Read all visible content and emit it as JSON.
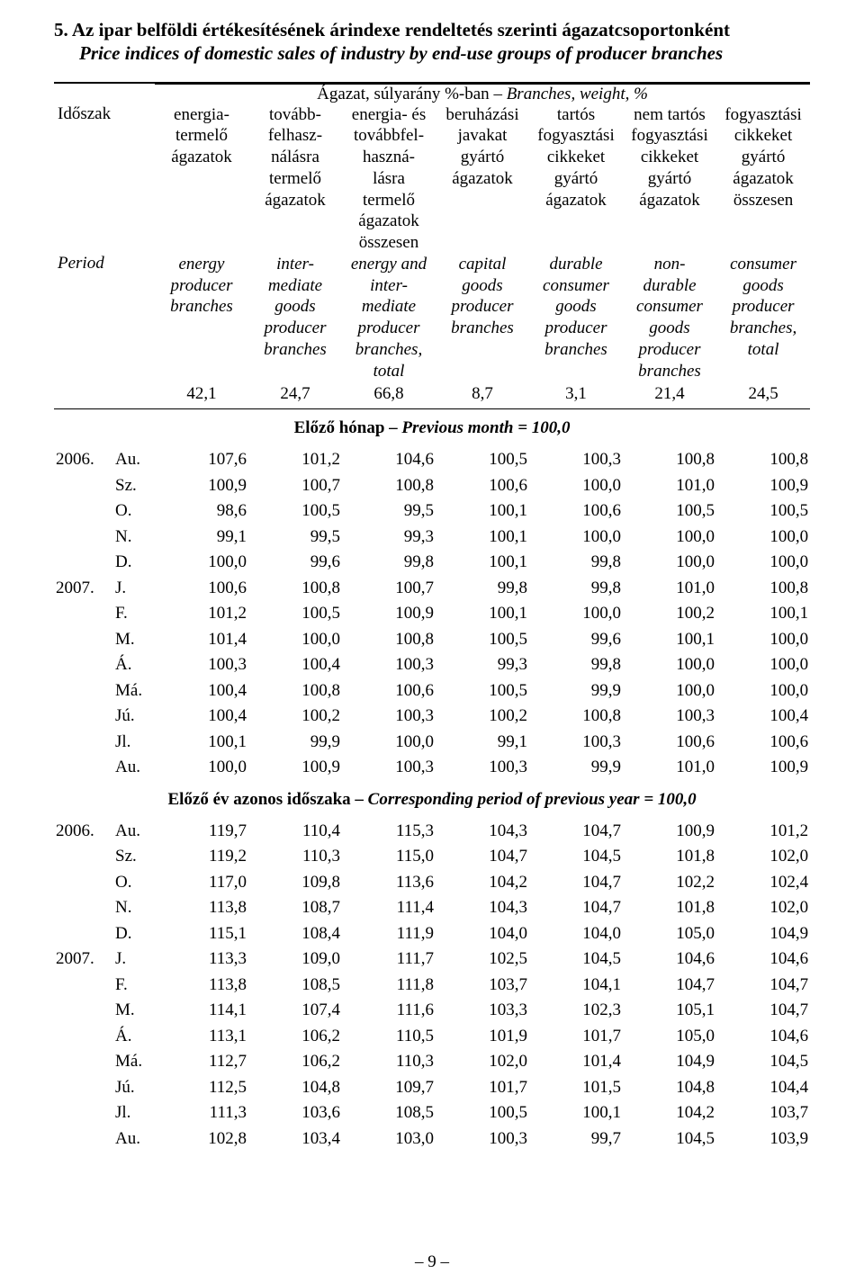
{
  "title_main": "5. Az ipar belföldi értékesítésének árindexe rendeltetés szerinti ágazatcsoportonként",
  "title_sub": "Price indices of domestic sales of industry by end-use groups of producer branches",
  "super_header_plain": "Ágazat, súlyarány %-ban ",
  "super_header_italic": "– Branches, weight, %",
  "row_labels": {
    "hu": "Időszak",
    "en": "Period"
  },
  "columns_hu": [
    "energia-\ntermelő\nágazatok",
    "tovább-\nfelhasz-\nnálásra\ntermelő\nágazatok",
    "energia- és\ntovábbfel-\nhaszná-\nlásra\ntermelő\nágazatok\nösszesen",
    "beruházási\njavakat\ngyártó\nágazatok",
    "tartós\nfogyasztási\ncikkeket\ngyártó\nágazatok",
    "nem tartós\nfogyasztási\ncikkeket\ngyártó\nágazatok",
    "fogyasztási\ncikkeket\ngyártó\nágazatok\nösszesen"
  ],
  "columns_en": [
    "energy\nproducer\nbranches",
    "inter-\nmediate\ngoods\nproducer\nbranches",
    "energy and\ninter-\nmediate\nproducer\nbranches,\ntotal",
    "capital\ngoods\nproducer\nbranches",
    "durable\nconsumer\ngoods\nproducer\nbranches",
    "non-\ndurable\nconsumer\ngoods\nproducer\nbranches",
    "consumer\ngoods\nproducer\nbranches,\ntotal"
  ],
  "weights": [
    "42,1",
    "24,7",
    "66,8",
    "8,7",
    "3,1",
    "21,4",
    "24,5"
  ],
  "section_a_plain": "Előző hónap – ",
  "section_a_italic": "Previous month =  100,0",
  "section_b_plain": "Előző év azonos időszaka – ",
  "section_b_italic": "Corresponding period of previous year  = 100,0",
  "rows_a": [
    {
      "year": "2006.",
      "month": "Au.",
      "v": [
        "107,6",
        "101,2",
        "104,6",
        "100,5",
        "100,3",
        "100,8",
        "100,8"
      ]
    },
    {
      "year": "",
      "month": "Sz.",
      "v": [
        "100,9",
        "100,7",
        "100,8",
        "100,6",
        "100,0",
        "101,0",
        "100,9"
      ]
    },
    {
      "year": "",
      "month": "O.",
      "v": [
        "98,6",
        "100,5",
        "99,5",
        "100,1",
        "100,6",
        "100,5",
        "100,5"
      ]
    },
    {
      "year": "",
      "month": "N.",
      "v": [
        "99,1",
        "99,5",
        "99,3",
        "100,1",
        "100,0",
        "100,0",
        "100,0"
      ]
    },
    {
      "year": "",
      "month": "D.",
      "v": [
        "100,0",
        "99,6",
        "99,8",
        "100,1",
        "99,8",
        "100,0",
        "100,0"
      ]
    },
    {
      "year": "2007.",
      "month": "J.",
      "v": [
        "100,6",
        "100,8",
        "100,7",
        "99,8",
        "99,8",
        "101,0",
        "100,8"
      ]
    },
    {
      "year": "",
      "month": "F.",
      "v": [
        "101,2",
        "100,5",
        "100,9",
        "100,1",
        "100,0",
        "100,2",
        "100,1"
      ]
    },
    {
      "year": "",
      "month": "M.",
      "v": [
        "101,4",
        "100,0",
        "100,8",
        "100,5",
        "99,6",
        "100,1",
        "100,0"
      ]
    },
    {
      "year": "",
      "month": "Á.",
      "v": [
        "100,3",
        "100,4",
        "100,3",
        "99,3",
        "99,8",
        "100,0",
        "100,0"
      ]
    },
    {
      "year": "",
      "month": "Má.",
      "v": [
        "100,4",
        "100,8",
        "100,6",
        "100,5",
        "99,9",
        "100,0",
        "100,0"
      ]
    },
    {
      "year": "",
      "month": "Jú.",
      "v": [
        "100,4",
        "100,2",
        "100,3",
        "100,2",
        "100,8",
        "100,3",
        "100,4"
      ]
    },
    {
      "year": "",
      "month": "Jl.",
      "v": [
        "100,1",
        "99,9",
        "100,0",
        "99,1",
        "100,3",
        "100,6",
        "100,6"
      ]
    },
    {
      "year": "",
      "month": "Au.",
      "v": [
        "100,0",
        "100,9",
        "100,3",
        "100,3",
        "99,9",
        "101,0",
        "100,9"
      ]
    }
  ],
  "rows_b": [
    {
      "year": "2006.",
      "month": "Au.",
      "v": [
        "119,7",
        "110,4",
        "115,3",
        "104,3",
        "104,7",
        "100,9",
        "101,2"
      ]
    },
    {
      "year": "",
      "month": "Sz.",
      "v": [
        "119,2",
        "110,3",
        "115,0",
        "104,7",
        "104,5",
        "101,8",
        "102,0"
      ]
    },
    {
      "year": "",
      "month": "O.",
      "v": [
        "117,0",
        "109,8",
        "113,6",
        "104,2",
        "104,7",
        "102,2",
        "102,4"
      ]
    },
    {
      "year": "",
      "month": "N.",
      "v": [
        "113,8",
        "108,7",
        "111,4",
        "104,3",
        "104,7",
        "101,8",
        "102,0"
      ]
    },
    {
      "year": "",
      "month": "D.",
      "v": [
        "115,1",
        "108,4",
        "111,9",
        "104,0",
        "104,0",
        "105,0",
        "104,9"
      ]
    },
    {
      "year": "2007.",
      "month": "J.",
      "v": [
        "113,3",
        "109,0",
        "111,7",
        "102,5",
        "104,5",
        "104,6",
        "104,6"
      ]
    },
    {
      "year": "",
      "month": "F.",
      "v": [
        "113,8",
        "108,5",
        "111,8",
        "103,7",
        "104,1",
        "104,7",
        "104,7"
      ]
    },
    {
      "year": "",
      "month": "M.",
      "v": [
        "114,1",
        "107,4",
        "111,6",
        "103,3",
        "102,3",
        "105,1",
        "104,7"
      ]
    },
    {
      "year": "",
      "month": "Á.",
      "v": [
        "113,1",
        "106,2",
        "110,5",
        "101,9",
        "101,7",
        "105,0",
        "104,6"
      ]
    },
    {
      "year": "",
      "month": "Má.",
      "v": [
        "112,7",
        "106,2",
        "110,3",
        "102,0",
        "101,4",
        "104,9",
        "104,5"
      ]
    },
    {
      "year": "",
      "month": "Jú.",
      "v": [
        "112,5",
        "104,8",
        "109,7",
        "101,7",
        "101,5",
        "104,8",
        "104,4"
      ]
    },
    {
      "year": "",
      "month": "Jl.",
      "v": [
        "111,3",
        "103,6",
        "108,5",
        "100,5",
        "100,1",
        "104,2",
        "103,7"
      ]
    },
    {
      "year": "",
      "month": "Au.",
      "v": [
        "102,8",
        "103,4",
        "103,0",
        "100,3",
        "99,7",
        "104,5",
        "103,9"
      ]
    }
  ],
  "page_number": "– 9 –",
  "colors": {
    "text": "#000000",
    "background": "#ffffff",
    "rule": "#000000"
  },
  "fonts": {
    "family": "Times New Roman",
    "title_size_pt": 16,
    "body_size_pt": 14
  }
}
